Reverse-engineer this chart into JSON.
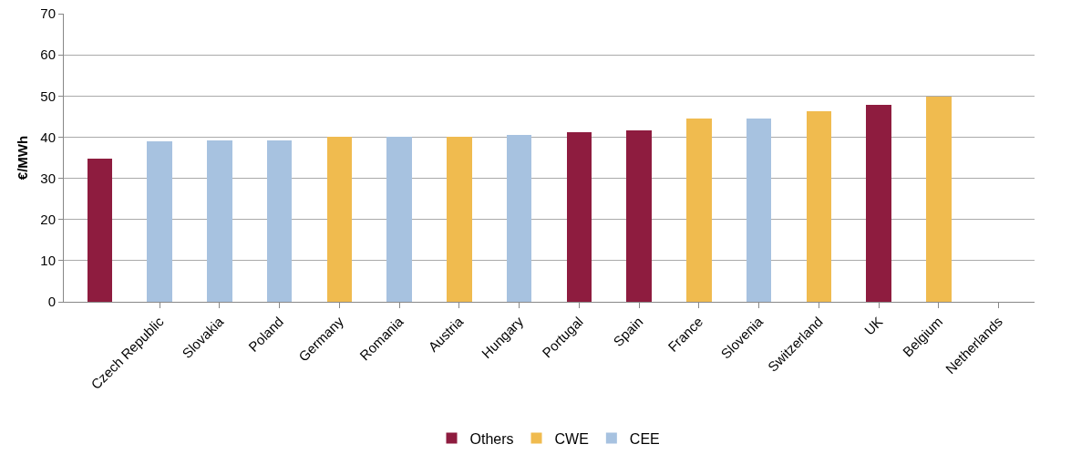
{
  "chart_data": {
    "type": "bar",
    "ylabel": "€/MWh",
    "categories": [
      null,
      "Czech Republic",
      "Slovakia",
      "Poland",
      "Germany",
      "Romania",
      "Austria",
      "Hungary",
      "Portugal",
      "Spain",
      "France",
      "Slovenia",
      "Switzerland",
      "UK",
      "Belgium",
      "Netherlands"
    ],
    "stacked": true,
    "series": [
      {
        "name": "CEE",
        "color": "#a7c2e0",
        "values": [
          null,
          39,
          39.3,
          39.3,
          null,
          40,
          null,
          40.5,
          null,
          null,
          null,
          44.6,
          null,
          null,
          null,
          null
        ]
      },
      {
        "name": "CWE",
        "color": "#f0bb4f",
        "values": [
          null,
          null,
          null,
          null,
          40,
          null,
          40,
          null,
          null,
          null,
          44.6,
          null,
          46.2,
          null,
          49.8,
          null
        ]
      },
      {
        "name": "Others",
        "color": "#8e1c3f",
        "values": [
          34.7,
          null,
          null,
          null,
          null,
          null,
          null,
          null,
          41.3,
          41.7,
          null,
          null,
          null,
          47.8,
          null,
          null
        ]
      }
    ],
    "ylim": [
      0,
      70
    ],
    "yticks": [
      0,
      10,
      20,
      30,
      40,
      50,
      60,
      70
    ],
    "grid": "y",
    "legend": "bottom"
  }
}
